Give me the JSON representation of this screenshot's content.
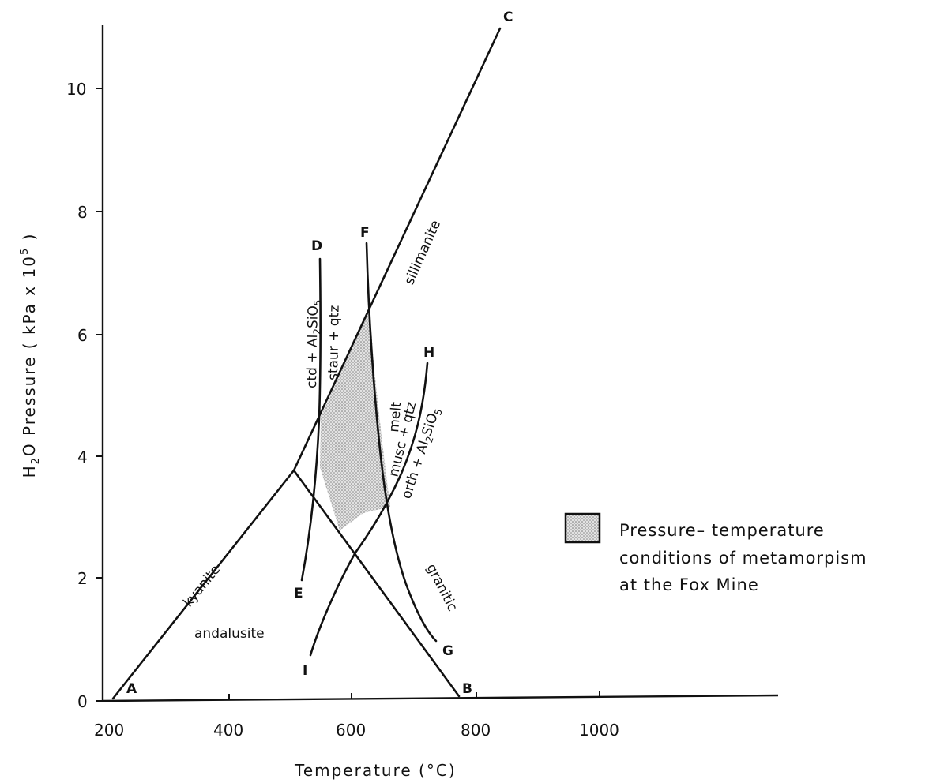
{
  "figure": {
    "x_axis_label": "Temperature  (°C)",
    "x_ticks": [
      "200",
      "400",
      "600",
      "800",
      "1000"
    ],
    "y_ticks": [
      "0",
      "2",
      "4",
      "6",
      "8",
      "10"
    ],
    "points": {
      "A": "A",
      "B": "B",
      "C": "C",
      "D": "D",
      "E": "E",
      "F": "F",
      "G": "G",
      "H": "H",
      "I": "I"
    },
    "curves": {
      "kyanite": "kyanite",
      "sillimanite": "sillimanite",
      "andalusite": "andalusite",
      "granitic": "granitic",
      "melt": "melt",
      "musc_qtz": "musc + qtz",
      "staur_qtz": "staur + qtz"
    },
    "legend": {
      "line1": "Pressure– temperature",
      "line2": "conditions of metamorpism",
      "line3": "at the Fox Mine"
    }
  }
}
